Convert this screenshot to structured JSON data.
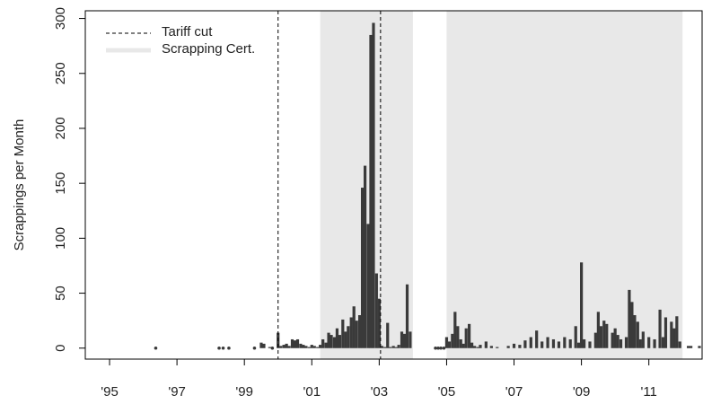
{
  "chart_data": {
    "type": "bar",
    "y_label": "Scrappings per Month",
    "color": "#3a3a3a",
    "xlim": [
      1994.28,
      2012.58
    ],
    "ylim": [
      -10,
      307
    ],
    "xticks": [
      {
        "value": 1995,
        "label": "'95"
      },
      {
        "value": 1997,
        "label": "'97"
      },
      {
        "value": 1999,
        "label": "'99"
      },
      {
        "value": 2001,
        "label": "'01"
      },
      {
        "value": 2003,
        "label": "'03"
      },
      {
        "value": 2005,
        "label": "'05"
      },
      {
        "value": 2007,
        "label": "'07"
      },
      {
        "value": 2009,
        "label": "'09"
      },
      {
        "value": 2011,
        "label": "'11"
      }
    ],
    "yticks": [
      0,
      50,
      100,
      150,
      200,
      250,
      300
    ],
    "vlines": {
      "name": "Tariff cut",
      "x": [
        2000.0,
        2003.04
      ]
    },
    "shaded": {
      "name": "Scrapping Cert.",
      "color": "#e8e8e8",
      "ranges": [
        [
          2001.25,
          2004.0
        ],
        [
          2005.0,
          2012.0
        ]
      ]
    },
    "legend": "top-left",
    "x": [
      1996.37,
      1998.25,
      1998.37,
      1998.54,
      1999.3,
      1999.5,
      1999.58,
      1999.75,
      1999.83,
      2000.0,
      2000.08,
      2000.17,
      2000.25,
      2000.33,
      2000.42,
      2000.5,
      2000.58,
      2000.67,
      2000.75,
      2000.83,
      2000.92,
      2001.0,
      2001.08,
      2001.17,
      2001.25,
      2001.33,
      2001.42,
      2001.5,
      2001.58,
      2001.67,
      2001.75,
      2001.83,
      2001.92,
      2002.0,
      2002.08,
      2002.17,
      2002.25,
      2002.33,
      2002.42,
      2002.5,
      2002.58,
      2002.67,
      2002.75,
      2002.83,
      2002.92,
      2003.0,
      2003.08,
      2003.17,
      2003.25,
      2003.33,
      2003.42,
      2003.5,
      2003.58,
      2003.67,
      2003.75,
      2003.83,
      2003.92,
      2004.67,
      2004.75,
      2004.83,
      2004.92,
      2005.0,
      2005.08,
      2005.17,
      2005.25,
      2005.33,
      2005.42,
      2005.5,
      2005.58,
      2005.67,
      2005.75,
      2005.83,
      2005.92,
      2006.0,
      2006.17,
      2006.33,
      2006.5,
      2006.83,
      2007.0,
      2007.17,
      2007.33,
      2007.5,
      2007.67,
      2007.83,
      2008.0,
      2008.17,
      2008.33,
      2008.5,
      2008.67,
      2008.83,
      2008.92,
      2009.0,
      2009.08,
      2009.25,
      2009.42,
      2009.5,
      2009.58,
      2009.67,
      2009.75,
      2009.92,
      2010.0,
      2010.08,
      2010.17,
      2010.33,
      2010.42,
      2010.5,
      2010.58,
      2010.67,
      2010.75,
      2010.83,
      2011.0,
      2011.17,
      2011.33,
      2011.42,
      2011.5,
      2011.67,
      2011.75,
      2011.83,
      2011.92,
      2012.17,
      2012.25,
      2012.5
    ],
    "values": [
      0,
      0,
      0,
      0,
      0,
      5,
      4,
      1,
      0,
      14,
      2,
      3,
      4,
      2,
      8,
      7,
      8,
      4,
      3,
      2,
      1,
      3,
      2,
      1,
      3,
      8,
      5,
      14,
      12,
      10,
      18,
      12,
      26,
      15,
      20,
      28,
      38,
      25,
      30,
      146,
      166,
      113,
      285,
      296,
      68,
      45,
      2,
      1,
      23,
      1,
      2,
      1,
      3,
      15,
      13,
      58,
      15,
      0,
      0,
      0,
      0,
      10,
      6,
      13,
      33,
      20,
      8,
      4,
      18,
      22,
      5,
      2,
      1,
      3,
      6,
      2,
      1,
      2,
      4,
      3,
      7,
      10,
      16,
      6,
      10,
      8,
      6,
      10,
      8,
      20,
      5,
      78,
      8,
      6,
      14,
      33,
      20,
      25,
      22,
      14,
      18,
      12,
      8,
      10,
      53,
      42,
      30,
      24,
      8,
      15,
      10,
      8,
      35,
      10,
      28,
      24,
      18,
      29,
      6,
      2,
      2,
      2
    ]
  }
}
